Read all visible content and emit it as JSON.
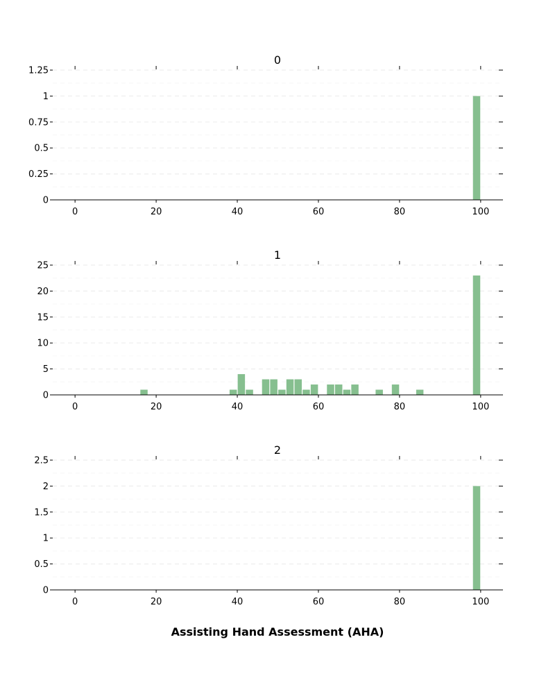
{
  "chart_data": {
    "type": "bar",
    "xlabel": "Assisting Hand Assessment (AHA)",
    "bar_color": "#86bf8f",
    "grid": true,
    "grid_color": "#eeeeee",
    "bin_width": 2,
    "xlim": [
      -5.5,
      105.5
    ],
    "xticks": [
      0,
      20,
      40,
      60,
      80,
      100
    ],
    "panels": [
      {
        "title": "0",
        "ylim": [
          0,
          1.25
        ],
        "yticks": [
          0,
          0.25,
          0.5,
          0.75,
          1,
          1.25
        ],
        "ytick_labels": [
          "0",
          "0.25",
          "0.5",
          "0.75",
          "1",
          "1.25"
        ],
        "bars": [
          {
            "x": 99,
            "value": 1
          }
        ]
      },
      {
        "title": "1",
        "ylim": [
          0,
          25
        ],
        "yticks": [
          0,
          5,
          10,
          15,
          20,
          25
        ],
        "ytick_labels": [
          "0",
          "5",
          "10",
          "15",
          "20",
          "25"
        ],
        "bars": [
          {
            "x": 17,
            "value": 1
          },
          {
            "x": 39,
            "value": 1
          },
          {
            "x": 41,
            "value": 4
          },
          {
            "x": 43,
            "value": 1
          },
          {
            "x": 47,
            "value": 3
          },
          {
            "x": 49,
            "value": 3
          },
          {
            "x": 51,
            "value": 1
          },
          {
            "x": 53,
            "value": 3
          },
          {
            "x": 55,
            "value": 3
          },
          {
            "x": 57,
            "value": 1
          },
          {
            "x": 59,
            "value": 2
          },
          {
            "x": 63,
            "value": 2
          },
          {
            "x": 65,
            "value": 2
          },
          {
            "x": 67,
            "value": 1
          },
          {
            "x": 69,
            "value": 2
          },
          {
            "x": 75,
            "value": 1
          },
          {
            "x": 79,
            "value": 2
          },
          {
            "x": 85,
            "value": 1
          },
          {
            "x": 99,
            "value": 23
          }
        ]
      },
      {
        "title": "2",
        "ylim": [
          0,
          2.5
        ],
        "yticks": [
          0,
          0.5,
          1,
          1.5,
          2,
          2.5
        ],
        "ytick_labels": [
          "0",
          "0.5",
          "1",
          "1.5",
          "2",
          "2.5"
        ],
        "bars": [
          {
            "x": 99,
            "value": 2
          }
        ]
      }
    ]
  }
}
